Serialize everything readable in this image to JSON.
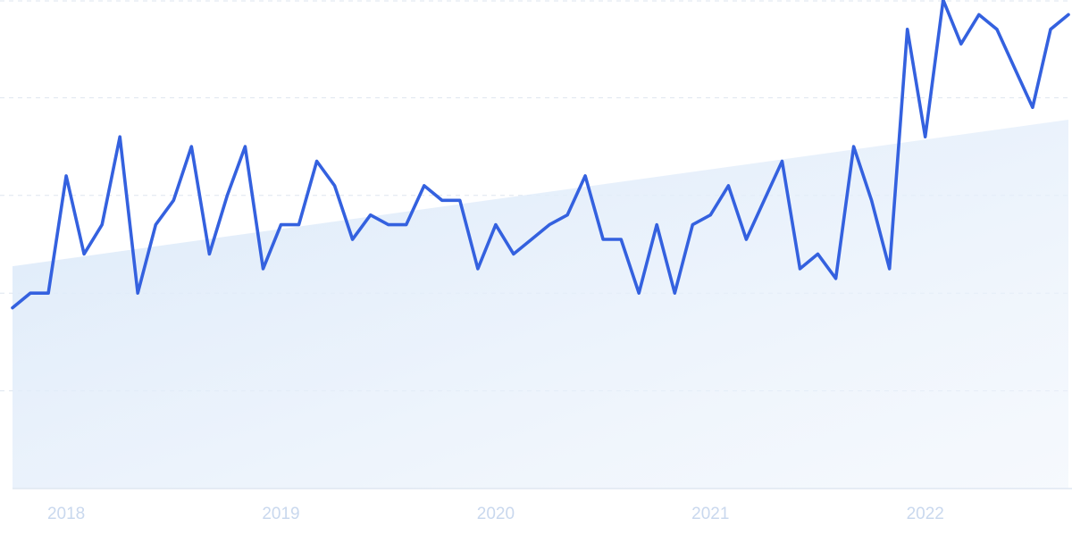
{
  "chart_data": {
    "type": "line",
    "title": "",
    "xlabel": "",
    "ylabel": "",
    "x_start": "2017-10",
    "x_ticks": [
      {
        "label": "2018",
        "date": "2018-01"
      },
      {
        "label": "2019",
        "date": "2019-01"
      },
      {
        "label": "2020",
        "date": "2020-01"
      },
      {
        "label": "2021",
        "date": "2021-01"
      },
      {
        "label": "2022",
        "date": "2022-01"
      }
    ],
    "ylim": [
      0,
      100
    ],
    "y_grid": [
      20,
      40,
      60,
      80,
      100
    ],
    "y_tick_labels_shown": false,
    "grid": true,
    "legend": "none",
    "series": [
      {
        "color": "#3461df",
        "values": [
          37,
          40,
          40,
          64,
          48,
          54,
          72,
          40,
          54,
          59,
          70,
          48,
          60,
          70,
          45,
          54,
          54,
          67,
          62,
          51,
          56,
          54,
          54,
          62,
          59,
          59,
          45,
          54,
          48,
          51,
          54,
          56,
          64,
          51,
          51,
          40,
          54,
          40,
          54,
          56,
          62,
          51,
          59,
          67,
          45,
          48,
          43,
          70,
          59,
          45,
          94,
          72,
          100,
          91,
          97,
          94,
          86,
          78,
          94,
          97
        ]
      }
    ],
    "trend": {
      "start": 45.5,
      "end": 75.5,
      "fill": "#dbe9f9"
    }
  }
}
